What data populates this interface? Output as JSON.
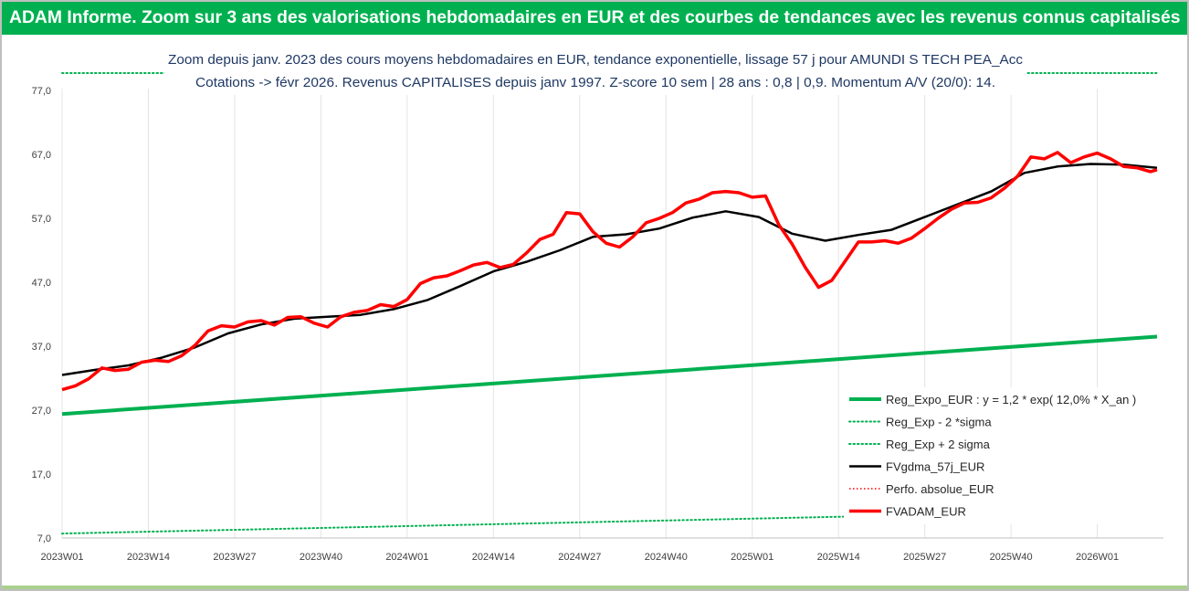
{
  "page": {
    "banner_title": "ADAM Informe. Zoom sur 3 ans des valorisations hebdomadaires en EUR et des courbes de tendances avec les revenus connus capitalisés"
  },
  "chart_data": {
    "type": "line",
    "title_line1": "Zoom depuis janv. 2023 des cours moyens hebdomadaires en EUR, tendance exponentielle, lissage 57 j pour AMUNDI S TECH PEA_Acc",
    "title_line2": "Cotations -> févr 2026. Revenus CAPITALISES depuis janv 1997. Z-score 10 sem | 28 ans : 0,8 | 0,9. Momentum A/V (20/0): 14.",
    "ylim": [
      7,
      77
    ],
    "y_ticks": [
      "7,0",
      "17,0",
      "27,0",
      "37,0",
      "47,0",
      "57,0",
      "67,0",
      "77,0"
    ],
    "x_ticks": [
      "2023W01",
      "2023W14",
      "2023W27",
      "2023W40",
      "2024W01",
      "2024W14",
      "2024W27",
      "2024W40",
      "2025W01",
      "2025W14",
      "2025W27",
      "2025W40",
      "2026W01"
    ],
    "x_unit": "week index from 2023W01",
    "x_max_week": 165,
    "grid": "vertical",
    "legend_position": "bottom-right",
    "colors": {
      "reg_expo": "#00b050",
      "sigma": "#00b050",
      "gdma": "#000000",
      "perfo": "#ff0000",
      "adam": "#ff0000"
    },
    "series": [
      {
        "name": "Reg_Expo_EUR : y = 1,2 * exp( 12,0% *  X_an )",
        "key": "reg_expo",
        "style": "solid-thick",
        "x": [
          0,
          165
        ],
        "y": [
          26.4,
          38.5
        ]
      },
      {
        "name": "Reg_Exp - 2 *sigma",
        "key": "sigma_low",
        "style": "dotted",
        "x": [
          0,
          165
        ],
        "y": [
          7.7,
          11.4
        ]
      },
      {
        "name": "Reg_Exp + 2 sigma",
        "key": "sigma_high",
        "style": "dotted",
        "x": [
          0,
          165
        ],
        "y": [
          79.9,
          79.9
        ]
      },
      {
        "name": "FVgdma_57j_EUR",
        "key": "gdma",
        "style": "solid",
        "x": [
          0,
          5,
          10,
          15,
          20,
          25,
          30,
          35,
          40,
          45,
          50,
          55,
          60,
          65,
          70,
          75,
          80,
          85,
          90,
          95,
          100,
          105,
          110,
          115,
          120,
          125,
          130,
          135,
          140,
          145,
          150,
          155,
          160,
          165
        ],
        "y": [
          32.5,
          33.3,
          34.0,
          35.2,
          36.8,
          39.0,
          40.4,
          41.3,
          41.6,
          41.9,
          42.8,
          44.2,
          46.4,
          48.7,
          50.2,
          52.0,
          54.1,
          54.5,
          55.4,
          57.1,
          58.1,
          57.2,
          54.6,
          53.5,
          54.4,
          55.2,
          57.2,
          59.2,
          61.2,
          64.1,
          65.1,
          65.5,
          65.4,
          64.9
        ]
      },
      {
        "name": "Perfo. absolue_EUR",
        "key": "perfo",
        "style": "dotted",
        "x": [],
        "y": []
      },
      {
        "name": "FVADAM_EUR",
        "key": "adam",
        "style": "solid-thick",
        "x": [
          0,
          2,
          4,
          6,
          8,
          10,
          12,
          14,
          16,
          18,
          20,
          22,
          24,
          26,
          28,
          30,
          32,
          34,
          36,
          38,
          40,
          42,
          44,
          46,
          48,
          50,
          52,
          54,
          56,
          58,
          60,
          62,
          64,
          66,
          68,
          70,
          72,
          74,
          76,
          78,
          80,
          82,
          84,
          86,
          88,
          90,
          92,
          94,
          96,
          98,
          100,
          102,
          104,
          106,
          108,
          110,
          112,
          114,
          116,
          118,
          120,
          122,
          124,
          126,
          128,
          130,
          132,
          134,
          136,
          138,
          140,
          142,
          144,
          146,
          148,
          150,
          152,
          154,
          156,
          158,
          160,
          162,
          164,
          165
        ],
        "y": [
          30.2,
          30.8,
          31.9,
          33.6,
          33.2,
          33.4,
          34.5,
          34.8,
          34.6,
          35.5,
          37.1,
          39.4,
          40.2,
          40.0,
          40.8,
          41.0,
          40.3,
          41.5,
          41.6,
          40.6,
          40.0,
          41.6,
          42.3,
          42.6,
          43.5,
          43.2,
          44.3,
          46.8,
          47.7,
          48.0,
          48.8,
          49.7,
          50.1,
          49.3,
          49.8,
          51.6,
          53.7,
          54.5,
          57.9,
          57.7,
          54.9,
          53.1,
          52.5,
          54.1,
          56.3,
          57.0,
          57.9,
          59.4,
          60.0,
          61.0,
          61.2,
          61.0,
          60.3,
          60.5,
          56.0,
          53.0,
          49.3,
          46.2,
          47.3,
          50.3,
          53.3,
          53.3,
          53.5,
          53.1,
          53.9,
          55.4,
          57.0,
          58.4,
          59.4,
          59.5,
          60.2,
          61.7,
          63.6,
          66.6,
          66.3,
          67.3,
          65.7,
          66.6,
          67.2,
          66.3,
          65.1,
          64.9,
          64.3,
          64.6
        ]
      }
    ]
  }
}
